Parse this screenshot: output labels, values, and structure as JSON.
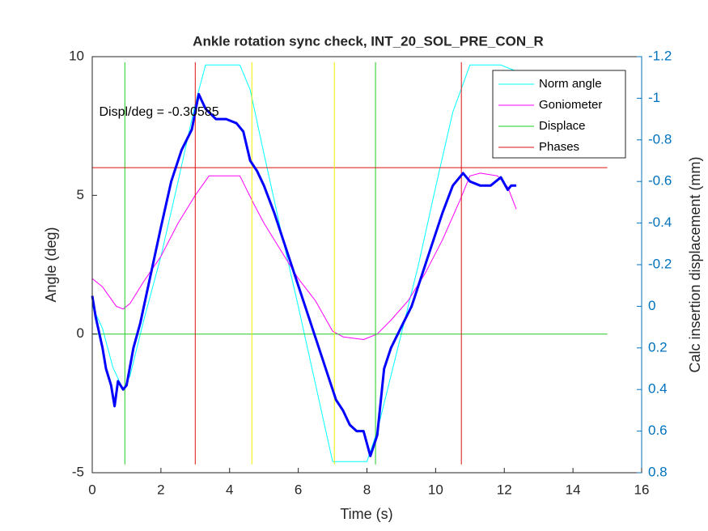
{
  "chart_data": {
    "type": "line",
    "title": "Ankle rotation sync check, INT_20_SOL_PRE_CON_R",
    "xlabel": "Time (s)",
    "ylabel": "Angle (deg)",
    "y2label": "Calc insertion displacement (mm)",
    "annotation": "Displ/deg = -0.30585",
    "xlim": [
      0,
      16
    ],
    "xticks": [
      0,
      2,
      4,
      6,
      8,
      10,
      12,
      14,
      16
    ],
    "ylim": [
      -5,
      10
    ],
    "yticks": [
      -5,
      0,
      5,
      10
    ],
    "y2lim": [
      -1.2,
      0.8
    ],
    "y2_reversed": true,
    "y2ticks": [
      -1.2,
      -1,
      -0.8,
      -0.6,
      -0.4,
      -0.2,
      0,
      0.2,
      0.4,
      0.6,
      0.8
    ],
    "y2color": "#0072bd",
    "legend": "northeast",
    "series": [
      {
        "name": "Norm angle",
        "color": "#00ffff",
        "width": 1,
        "x": [
          0,
          0.3,
          0.6,
          0.9,
          1.1,
          1.5,
          2,
          2.5,
          3,
          3.3,
          4.3,
          4.6,
          5,
          5.5,
          6,
          6.5,
          7,
          8,
          8.3,
          9,
          9.5,
          10,
          10.5,
          11,
          11.9,
          12.3
        ],
        "values": [
          1.0,
          0.2,
          -1.2,
          -2.0,
          -1.5,
          0.5,
          2.8,
          5.5,
          8.3,
          9.7,
          9.7,
          8.8,
          6.5,
          3.7,
          1.0,
          -1.8,
          -4.6,
          -4.6,
          -3.5,
          0.0,
          2.5,
          5.3,
          8.0,
          9.7,
          9.7,
          9.5
        ]
      },
      {
        "name": "Goniometer",
        "color": "#ff00ff",
        "width": 1,
        "x": [
          0,
          0.3,
          0.7,
          0.9,
          1.1,
          1.5,
          2,
          2.5,
          3,
          3.4,
          4.3,
          4.7,
          5,
          5.5,
          6,
          6.5,
          7,
          7.3,
          7.9,
          8.3,
          8.7,
          9.2,
          9.7,
          10.2,
          10.7,
          11,
          11.3,
          11.8,
          12.1,
          12.35
        ],
        "values": [
          2.0,
          1.7,
          1.0,
          0.9,
          1.1,
          1.9,
          2.8,
          4.0,
          5.0,
          5.7,
          5.7,
          4.7,
          4.0,
          3.0,
          2.0,
          1.2,
          0.1,
          -0.1,
          -0.2,
          0.0,
          0.5,
          1.2,
          2.2,
          3.4,
          4.8,
          5.7,
          5.8,
          5.7,
          5.3,
          4.5
        ]
      },
      {
        "name": "Displace",
        "color": "#22cc22",
        "width": 1,
        "x": [
          0.95,
          0.95,
          null,
          8.25,
          8.25,
          null,
          0,
          15
        ],
        "values": [
          -4.7,
          9.8,
          null,
          -4.7,
          9.8,
          null,
          0,
          0
        ]
      },
      {
        "name": "Phases",
        "color": "#dd1111",
        "width": 1,
        "x": [
          3,
          3,
          null,
          10.75,
          10.75,
          null,
          0,
          15
        ],
        "values": [
          -4.7,
          9.8,
          null,
          -4.7,
          9.8,
          null,
          6,
          6
        ]
      },
      {
        "color": "#eeee00",
        "width": 1,
        "x": [
          4.65,
          4.65,
          null,
          7.05,
          7.05
        ],
        "values": [
          -4.7,
          9.8,
          null,
          -4.7,
          9.8
        ]
      },
      {
        "color": "#0000ff",
        "width": 3,
        "axis": "y2",
        "x": [
          0,
          0.1,
          0.3,
          0.4,
          0.55,
          0.65,
          0.75,
          0.9,
          1.0,
          1.2,
          1.4,
          1.7,
          2,
          2.3,
          2.6,
          2.9,
          3.1,
          3.3,
          3.6,
          3.9,
          4.2,
          4.4,
          4.6,
          4.8,
          5,
          5.3,
          5.6,
          6,
          6.3,
          6.6,
          6.9,
          7.1,
          7.3,
          7.5,
          7.7,
          7.9,
          8.1,
          8.3,
          8.5,
          8.7,
          9,
          9.3,
          9.6,
          9.9,
          10.2,
          10.5,
          10.8,
          11,
          11.3,
          11.6,
          11.9,
          12.1,
          12.2,
          12.35
        ],
        "values": [
          -0.05,
          0.05,
          0.2,
          0.3,
          0.38,
          0.48,
          0.36,
          0.4,
          0.38,
          0.2,
          0.08,
          -0.15,
          -0.38,
          -0.6,
          -0.75,
          -0.85,
          -1.02,
          -0.95,
          -0.9,
          -0.9,
          -0.88,
          -0.84,
          -0.7,
          -0.65,
          -0.58,
          -0.45,
          -0.3,
          -0.1,
          0.05,
          0.2,
          0.35,
          0.45,
          0.5,
          0.57,
          0.6,
          0.6,
          0.72,
          0.62,
          0.3,
          0.2,
          0.1,
          0.0,
          -0.15,
          -0.3,
          -0.45,
          -0.58,
          -0.64,
          -0.6,
          -0.58,
          -0.58,
          -0.62,
          -0.56,
          -0.58,
          -0.58
        ]
      }
    ]
  }
}
